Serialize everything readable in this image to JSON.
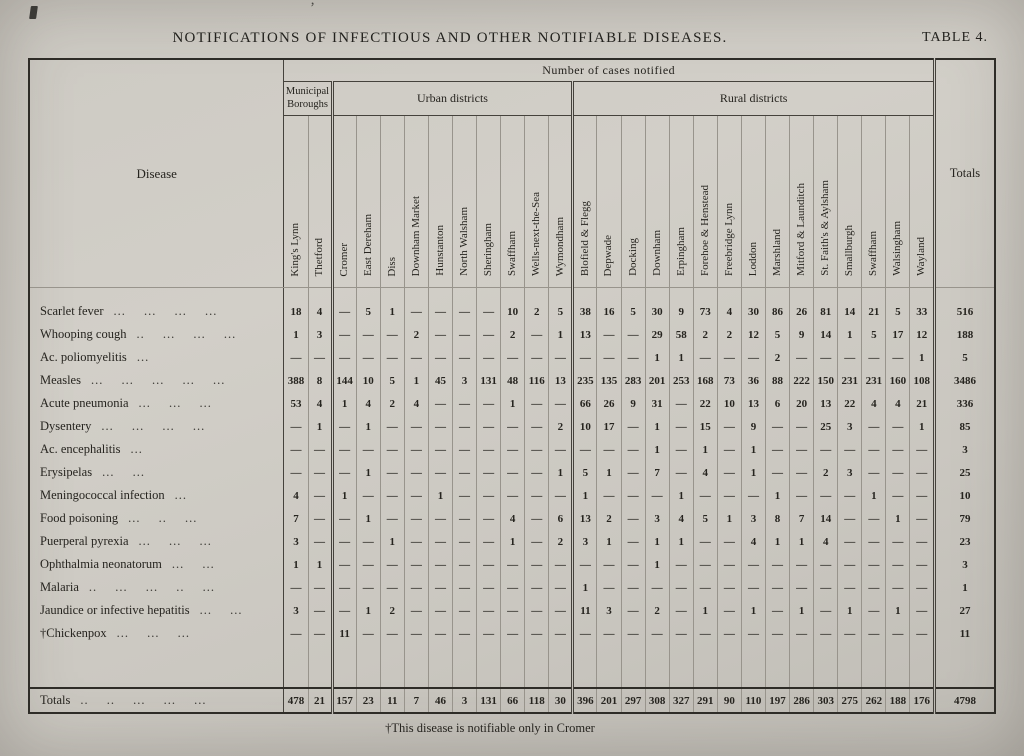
{
  "page": {
    "title": "NOTIFICATIONS OF INFECTIOUS AND OTHER NOTIFIABLE DISEASES.",
    "table_label": "TABLE 4.",
    "footnote": "†This disease is notifiable only in Cromer"
  },
  "table": {
    "disease_header": "Disease",
    "cases_header": "Number of cases notified",
    "totals_header": "Totals",
    "groups": [
      {
        "label": "Municipal Boroughs",
        "span": 2
      },
      {
        "label": "Urban districts",
        "span": 10
      },
      {
        "label": "Rural districts",
        "span": 15
      }
    ],
    "columns": [
      "King's Lynn",
      "Thetford",
      "Cromer",
      "East Dereham",
      "Diss",
      "Downham Market",
      "Hunstanton",
      "North Walsham",
      "Sheringham",
      "Swaffham",
      "Wells-next-the-Sea",
      "Wymondham",
      "Blofield & Flegg",
      "Depwade",
      "Docking",
      "Downham",
      "Erpingham",
      "Forehoe & Henstead",
      "Freebridge Lynn",
      "Loddon",
      "Marshland",
      "Mitford & Launditch",
      "St. Faith's & Aylsham",
      "Smallburgh",
      "Swaffham",
      "Walsingham",
      "Wayland"
    ],
    "rows": [
      {
        "disease": "Scarlet fever",
        "leader": "... ... ... ...",
        "values": [
          "18",
          "4",
          "—",
          "5",
          "1",
          "—",
          "—",
          "—",
          "—",
          "10",
          "2",
          "5",
          "38",
          "16",
          "5",
          "30",
          "9",
          "73",
          "4",
          "30",
          "86",
          "26",
          "81",
          "14",
          "21",
          "5",
          "33"
        ],
        "total": "516"
      },
      {
        "disease": "Whooping cough",
        "leader": ".. ... ... ...",
        "values": [
          "1",
          "3",
          "—",
          "—",
          "—",
          "2",
          "—",
          "—",
          "—",
          "2",
          "—",
          "1",
          "13",
          "—",
          "—",
          "29",
          "58",
          "2",
          "2",
          "12",
          "5",
          "9",
          "14",
          "1",
          "5",
          "17",
          "12"
        ],
        "total": "188"
      },
      {
        "disease": "Ac. poliomyelitis",
        "leader": "...",
        "values": [
          "—",
          "—",
          "—",
          "—",
          "—",
          "—",
          "—",
          "—",
          "—",
          "—",
          "—",
          "—",
          "—",
          "—",
          "—",
          "1",
          "1",
          "—",
          "—",
          "—",
          "2",
          "—",
          "—",
          "—",
          "—",
          "—",
          "1"
        ],
        "total": "5"
      },
      {
        "disease": "Measles",
        "leader": "... ... ... ... ...",
        "values": [
          "388",
          "8",
          "144",
          "10",
          "5",
          "1",
          "45",
          "3",
          "131",
          "48",
          "116",
          "13",
          "235",
          "135",
          "283",
          "201",
          "253",
          "168",
          "73",
          "36",
          "88",
          "222",
          "150",
          "231",
          "231",
          "160",
          "108"
        ],
        "total": "3486"
      },
      {
        "disease": "Acute pneumonia",
        "leader": "... ... ...",
        "values": [
          "53",
          "4",
          "1",
          "4",
          "2",
          "4",
          "—",
          "—",
          "—",
          "1",
          "—",
          "—",
          "66",
          "26",
          "9",
          "31",
          "—",
          "22",
          "10",
          "13",
          "6",
          "20",
          "13",
          "22",
          "4",
          "4",
          "21"
        ],
        "total": "336"
      },
      {
        "disease": "Dysentery",
        "leader": "... ... ... ...",
        "values": [
          "—",
          "1",
          "—",
          "1",
          "—",
          "—",
          "—",
          "—",
          "—",
          "—",
          "—",
          "2",
          "10",
          "17",
          "—",
          "1",
          "—",
          "15",
          "—",
          "9",
          "—",
          "—",
          "25",
          "3",
          "—",
          "—",
          "1"
        ],
        "total": "85"
      },
      {
        "disease": "Ac. encephalitis",
        "leader": "...",
        "values": [
          "—",
          "—",
          "—",
          "—",
          "—",
          "—",
          "—",
          "—",
          "—",
          "—",
          "—",
          "—",
          "—",
          "—",
          "—",
          "1",
          "—",
          "1",
          "—",
          "1",
          "—",
          "—",
          "—",
          "—",
          "—",
          "—",
          "—"
        ],
        "total": "3"
      },
      {
        "disease": "Erysipelas",
        "leader": "... ...",
        "values": [
          "—",
          "—",
          "—",
          "1",
          "—",
          "—",
          "—",
          "—",
          "—",
          "—",
          "—",
          "1",
          "5",
          "1",
          "—",
          "7",
          "—",
          "4",
          "—",
          "1",
          "—",
          "—",
          "2",
          "3",
          "—",
          "—",
          "—"
        ],
        "total": "25"
      },
      {
        "disease": "Meningococcal infection",
        "leader": "...",
        "values": [
          "4",
          "—",
          "1",
          "—",
          "—",
          "—",
          "1",
          "—",
          "—",
          "—",
          "—",
          "—",
          "1",
          "—",
          "—",
          "—",
          "1",
          "—",
          "—",
          "—",
          "1",
          "—",
          "—",
          "—",
          "1",
          "—",
          "—"
        ],
        "total": "10"
      },
      {
        "disease": "Food poisoning",
        "leader": "... .. ...",
        "values": [
          "7",
          "—",
          "—",
          "1",
          "—",
          "—",
          "—",
          "—",
          "—",
          "4",
          "—",
          "6",
          "13",
          "2",
          "—",
          "3",
          "4",
          "5",
          "1",
          "3",
          "8",
          "7",
          "14",
          "—",
          "—",
          "1",
          "—"
        ],
        "total": "79"
      },
      {
        "disease": "Puerperal pyrexia",
        "leader": "... ... ...",
        "values": [
          "3",
          "—",
          "—",
          "—",
          "1",
          "—",
          "—",
          "—",
          "—",
          "1",
          "—",
          "2",
          "3",
          "1",
          "—",
          "1",
          "1",
          "—",
          "—",
          "4",
          "1",
          "1",
          "4",
          "—",
          "—",
          "—",
          "—"
        ],
        "total": "23"
      },
      {
        "disease": "Ophthalmia neonatorum",
        "leader": "... ...",
        "values": [
          "1",
          "1",
          "—",
          "—",
          "—",
          "—",
          "—",
          "—",
          "—",
          "—",
          "—",
          "—",
          "—",
          "—",
          "—",
          "1",
          "—",
          "—",
          "—",
          "—",
          "—",
          "—",
          "—",
          "—",
          "—",
          "—",
          "—"
        ],
        "total": "3"
      },
      {
        "disease": "Malaria",
        "leader": ".. ... ... .. ...",
        "values": [
          "—",
          "—",
          "—",
          "—",
          "—",
          "—",
          "—",
          "—",
          "—",
          "—",
          "—",
          "—",
          "1",
          "—",
          "—",
          "—",
          "—",
          "—",
          "—",
          "—",
          "—",
          "—",
          "—",
          "—",
          "—",
          "—",
          "—"
        ],
        "total": "1"
      },
      {
        "disease": "Jaundice or infective hepatitis",
        "leader": "... ...",
        "values": [
          "3",
          "—",
          "—",
          "1",
          "2",
          "—",
          "—",
          "—",
          "—",
          "—",
          "—",
          "—",
          "11",
          "3",
          "—",
          "2",
          "—",
          "1",
          "—",
          "1",
          "—",
          "1",
          "—",
          "1",
          "—",
          "1",
          "—"
        ],
        "total": "27"
      },
      {
        "disease": "†Chickenpox",
        "leader": "... ... ...",
        "values": [
          "—",
          "—",
          "11",
          "—",
          "—",
          "—",
          "—",
          "—",
          "—",
          "—",
          "—",
          "—",
          "—",
          "—",
          "—",
          "—",
          "—",
          "—",
          "—",
          "—",
          "—",
          "—",
          "—",
          "—",
          "—",
          "—",
          "—"
        ],
        "total": "11"
      }
    ],
    "totals_row": {
      "label": "Totals",
      "leader": ".. .. ... ... ...",
      "values": [
        "478",
        "21",
        "157",
        "23",
        "11",
        "7",
        "46",
        "3",
        "131",
        "66",
        "118",
        "30",
        "396",
        "201",
        "297",
        "308",
        "327",
        "291",
        "90",
        "110",
        "197",
        "286",
        "303",
        "275",
        "262",
        "188",
        "176"
      ],
      "total": "4798"
    }
  }
}
